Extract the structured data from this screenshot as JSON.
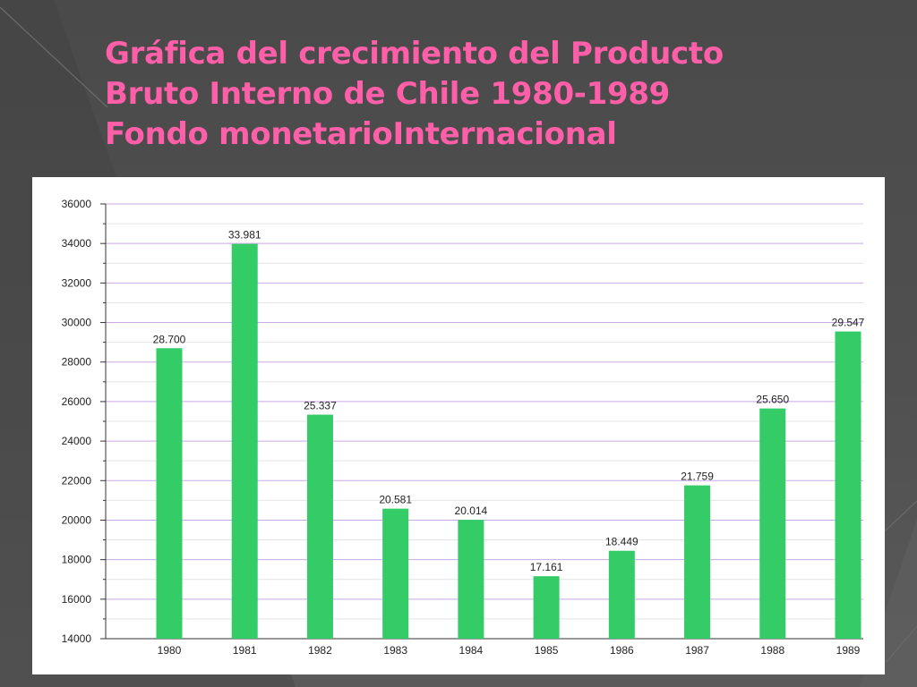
{
  "slide": {
    "title_lines": [
      "Gráfica del crecimiento del Producto",
      "Bruto Interno de Chile 1980-1989",
      "Fondo monetarioInternacional"
    ]
  },
  "colors": {
    "title": "#ff5fa8",
    "bar": "#33cc66",
    "major_grid": "#c9a8e8",
    "minor_grid": "#e4e4e4"
  },
  "chart_data": {
    "type": "bar",
    "title": "",
    "xlabel": "",
    "ylabel": "",
    "categories": [
      "1980",
      "1981",
      "1982",
      "1983",
      "1984",
      "1985",
      "1986",
      "1987",
      "1988",
      "1989"
    ],
    "values": [
      28700,
      33981,
      25337,
      20581,
      20014,
      17161,
      18449,
      21759,
      25650,
      29547
    ],
    "value_labels": [
      "28.700",
      "33.981",
      "25.337",
      "20.581",
      "20.014",
      "17.161",
      "18.449",
      "21.759",
      "25.650",
      "29.547"
    ],
    "ylim": [
      14000,
      36000
    ],
    "y_ticks": [
      14000,
      16000,
      18000,
      20000,
      22000,
      24000,
      26000,
      28000,
      30000,
      32000,
      34000,
      36000
    ],
    "y_tick_labels": [
      "14000",
      "16000",
      "18000",
      "20000",
      "22000",
      "24000",
      "26000",
      "28000",
      "30000",
      "32000",
      "34000",
      "36000"
    ],
    "grid": true,
    "legend": "none"
  }
}
